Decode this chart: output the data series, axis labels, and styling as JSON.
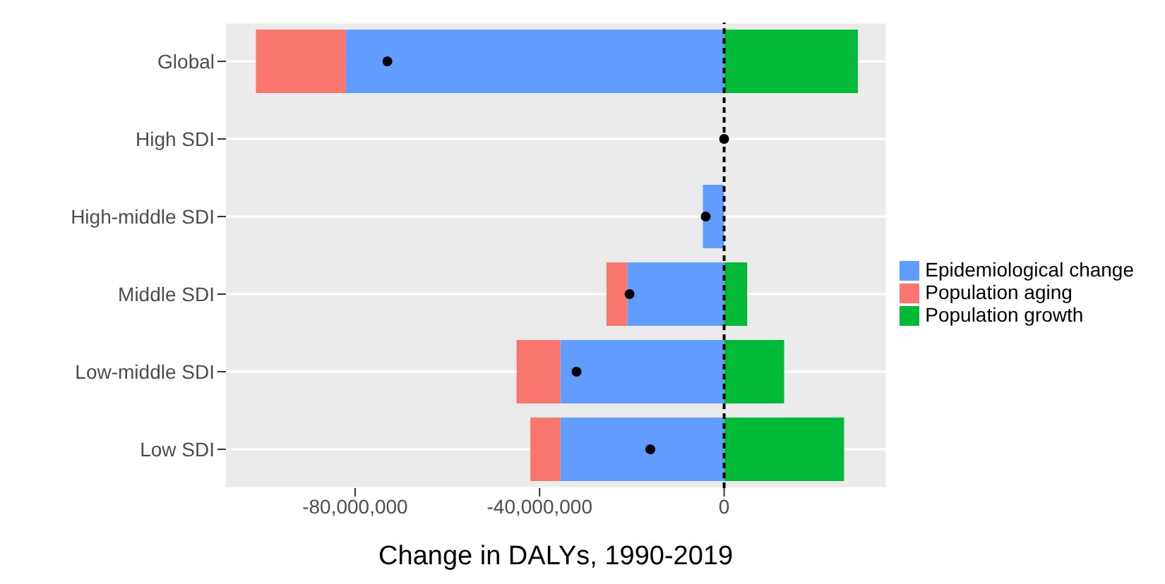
{
  "chart_data": {
    "type": "bar",
    "orientation": "horizontal",
    "stacked": true,
    "xlabel": "Change in DALYs, 1990-2019",
    "categories": [
      "Global",
      "High SDI",
      "High-middle SDI",
      "Middle SDI",
      "Low-middle SDI",
      "Low SDI"
    ],
    "series": [
      {
        "name": "Epidemiological change",
        "color": "#619cff",
        "values": [
          -82000000,
          0,
          -4600000,
          -21000000,
          -35500000,
          -35500000
        ]
      },
      {
        "name": "Population aging",
        "color": "#f8766d",
        "values": [
          -19500000,
          0,
          0,
          -4500000,
          -9500000,
          -6500000
        ]
      },
      {
        "name": "Population growth",
        "color": "#00ba38",
        "values": [
          29000000,
          0,
          0,
          5000000,
          13000000,
          26000000
        ]
      },
      {
        "type": "scatter",
        "color": "#000000",
        "values": [
          -73000000,
          0,
          -4000000,
          -20500000,
          -32000000,
          -16000000
        ]
      }
    ],
    "xlim": [
      -108000000,
      35000000
    ],
    "xticks": [
      {
        "value": -80000000,
        "label": "-80,000,000"
      },
      {
        "value": -40000000,
        "label": "-40,000,000"
      },
      0
    ],
    "ref_lines": [
      {
        "axis": "x",
        "value": 0,
        "color": "#000000",
        "line_style": "dashed"
      }
    ],
    "grid": "y",
    "legend": "right",
    "marker": "circle"
  }
}
